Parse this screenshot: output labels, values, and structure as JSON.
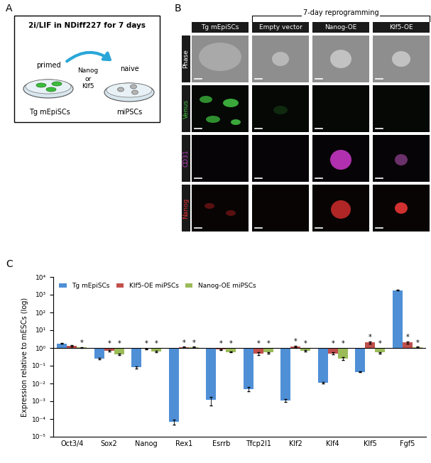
{
  "panel_a": {
    "label": "A",
    "box_title": "2i/LIF in NDiff227 for 7 days",
    "left_state": "primed",
    "right_state": "naive",
    "factors": [
      "Nanog",
      "or",
      "Klf5"
    ],
    "left_cells": "Tg mEpiSCs",
    "right_cells": "miPSCs"
  },
  "panel_b": {
    "label": "B",
    "bracket": "7-day reprogramming",
    "columns": [
      "Tg mEpiSCs",
      "Empty vector",
      "Nanog-OE",
      "Klf5-OE"
    ],
    "rows": [
      {
        "name": "Phase",
        "color": "#ffffff"
      },
      {
        "name": "Venus",
        "color": "#3dbb3d"
      },
      {
        "name": "CD31",
        "color": "#c040c0"
      },
      {
        "name": "Nanog",
        "color": "#e03030"
      }
    ]
  },
  "panel_c_label": "C",
  "chart_data": {
    "type": "bar",
    "log": "y",
    "grid": false,
    "legend": "upper left",
    "ylabel": "Expression relative to mESCs (log)",
    "baseline": 1,
    "categories": [
      "Oct3/4",
      "Sox2",
      "Nanog",
      "Rex1",
      "Esrrb",
      "Tfcp2l1",
      "Klf2",
      "Klf4",
      "Klf5",
      "Fgf5"
    ],
    "ylim": [
      1e-05,
      10000
    ],
    "yticks": [
      {
        "value": 1e-05,
        "label": "10⁻⁵"
      },
      {
        "value": 0.0001,
        "label": "10⁻⁴"
      },
      {
        "value": 0.001,
        "label": "10⁻³"
      },
      {
        "value": 0.01,
        "label": "10⁻²"
      },
      {
        "value": 0.1,
        "label": "10⁻¹"
      },
      {
        "value": 1,
        "label": "10⁰"
      },
      {
        "value": 10,
        "label": "10¹"
      },
      {
        "value": 100,
        "label": "10²"
      },
      {
        "value": 1000,
        "label": "10³"
      },
      {
        "value": 10000,
        "label": "10⁴"
      }
    ],
    "series": [
      {
        "name": "Tg mEpiSCs",
        "color": "#4f8fd6",
        "values": [
          1.8,
          0.25,
          0.08,
          7e-05,
          0.0012,
          0.005,
          0.0011,
          0.011,
          0.045,
          1800
        ],
        "errors": [
          0.1,
          0.02,
          0.01,
          2e-05,
          0.0006,
          0.0015,
          0.0002,
          0.001,
          0.003,
          50
        ],
        "annotations": [
          null,
          null,
          null,
          null,
          null,
          null,
          null,
          null,
          null,
          null
        ]
      },
      {
        "name": "Klf5-OE miPSCs",
        "color": "#c0504d",
        "values": [
          1.3,
          0.7,
          0.9,
          1.1,
          0.8,
          0.5,
          1.2,
          0.5,
          2.0,
          2.0
        ],
        "errors": [
          0.1,
          0.05,
          0.05,
          0.05,
          0.05,
          0.1,
          0.1,
          0.05,
          0.3,
          0.3
        ],
        "annotations": [
          null,
          "*",
          "*",
          "*",
          "*",
          "*",
          "*",
          "*",
          "*",
          "*"
        ]
      },
      {
        "name": "Nanog-OE miPSCs",
        "color": "#9bbb59",
        "values": [
          1.05,
          0.45,
          0.65,
          1.1,
          0.6,
          0.55,
          0.7,
          0.25,
          0.55,
          1.1
        ],
        "errors": [
          0.05,
          0.05,
          0.05,
          0.05,
          0.05,
          0.05,
          0.05,
          0.05,
          0.05,
          0.05
        ],
        "annotations": [
          "*",
          "*",
          "*",
          "*",
          "*",
          "*",
          "*",
          "*",
          "*",
          "*"
        ]
      }
    ]
  }
}
